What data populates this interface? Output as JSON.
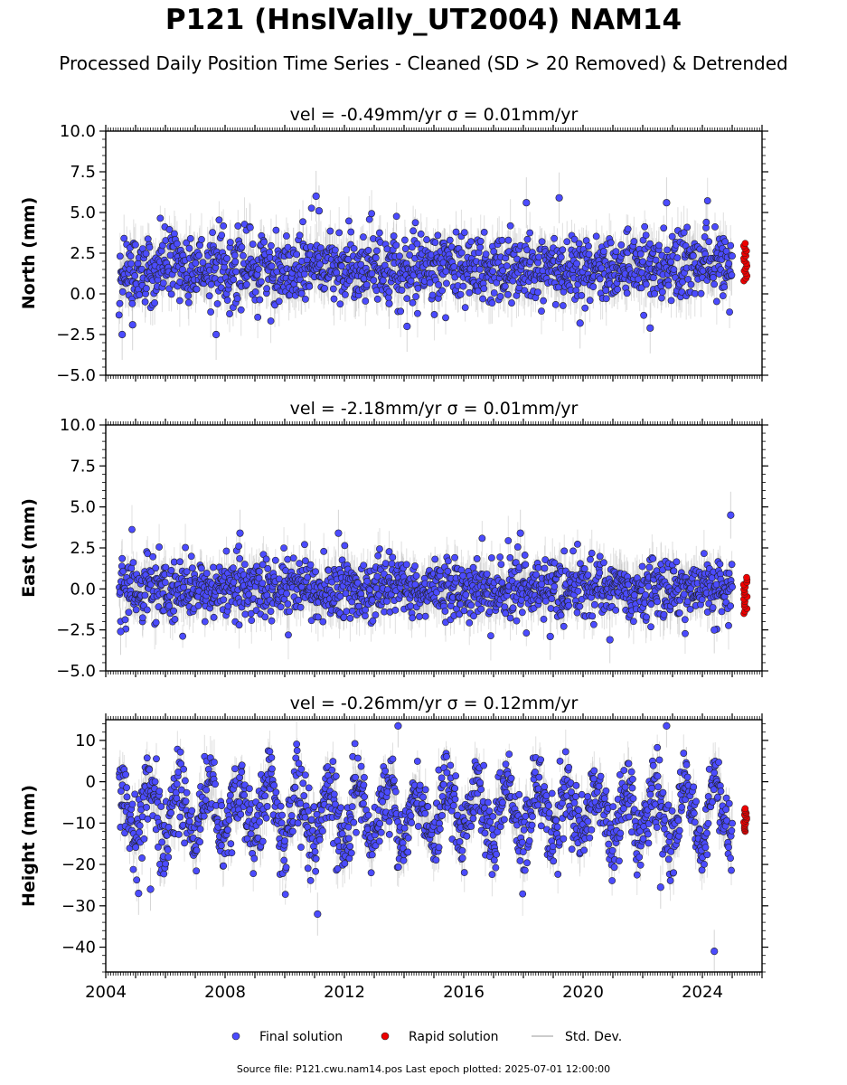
{
  "figure": {
    "title": "P121 (HnslVally_UT2004) NAM14",
    "subtitle": "Processed Daily Position Time Series - Cleaned (SD > 20 Removed) & Detrended",
    "footer": "Source file: P121.cwu.nam14.pos  Last epoch plotted: 2025-07-01 12:00:00"
  },
  "chart_data": {
    "type": "scatter",
    "xlabel": "",
    "xlim": [
      2004.0,
      2026.0
    ],
    "x_ticks": [
      2004,
      2008,
      2012,
      2016,
      2020,
      2024
    ],
    "x_tick_labels": [
      "2004",
      "2008",
      "2012",
      "2016",
      "2020",
      "2024"
    ],
    "data_span": {
      "final_start": 2004.45,
      "final_end": 2025.0,
      "rapid_start": 2025.38,
      "rapid_end": 2025.5
    },
    "legend": {
      "placement": "bottom-center",
      "entries": [
        {
          "label": "Final solution",
          "marker": "circle",
          "color": "#4b4bff"
        },
        {
          "label": "Rapid solution",
          "marker": "circle",
          "color": "#ee0000"
        },
        {
          "label": "Std. Dev.",
          "marker": "line",
          "color": "#cccccc"
        }
      ]
    },
    "colors": {
      "final": "#4b4bff",
      "rapid": "#ee0000",
      "stddev": "#bbbbbb",
      "edge": "#222222"
    },
    "panels": [
      {
        "component": "north",
        "subtitle": "vel = -0.49mm/yr   σ = 0.01mm/yr",
        "ylabel": "North (mm)",
        "ylim": [
          -5.0,
          10.0
        ],
        "y_ticks": [
          -5.0,
          -2.5,
          0.0,
          2.5,
          5.0,
          7.5,
          10.0
        ],
        "y_tick_labels": [
          "−5.0",
          "−2.5",
          "0.0",
          "2.5",
          "5.0",
          "7.5",
          "10.0"
        ],
        "final_mean": 1.6,
        "final_sd": 1.05,
        "sigma_bar": 1.2,
        "rapid_range": [
          0.8,
          3.1
        ],
        "outliers": [
          [
            2004.55,
            -2.5
          ],
          [
            2004.9,
            -1.9
          ],
          [
            2007.7,
            -2.5
          ],
          [
            2011.05,
            6.0
          ],
          [
            2011.15,
            5.1
          ],
          [
            2013.5,
            -0.6
          ],
          [
            2014.1,
            -2.0
          ],
          [
            2018.1,
            5.6
          ],
          [
            2019.2,
            5.9
          ],
          [
            2022.8,
            5.6
          ],
          [
            2022.25,
            -2.1
          ],
          [
            2019.9,
            -1.8
          ]
        ]
      },
      {
        "component": "east",
        "subtitle": "vel = -2.18mm/yr   σ = 0.01mm/yr",
        "ylabel": "East (mm)",
        "ylim": [
          -5.0,
          10.0
        ],
        "y_ticks": [
          -5.0,
          -2.5,
          0.0,
          2.5,
          5.0,
          7.5,
          10.0
        ],
        "y_tick_labels": [
          "−5.0",
          "−2.5",
          "0.0",
          "2.5",
          "5.0",
          "7.5",
          "10.0"
        ],
        "final_mean": 0.0,
        "final_sd": 0.95,
        "sigma_bar": 1.1,
        "rapid_range": [
          -1.5,
          0.7
        ],
        "outliers": [
          [
            2004.5,
            -2.6
          ],
          [
            2008.5,
            3.4
          ],
          [
            2011.8,
            3.4
          ],
          [
            2017.9,
            3.4
          ],
          [
            2020.9,
            -3.1
          ],
          [
            2024.95,
            4.5
          ],
          [
            2024.4,
            -2.5
          ],
          [
            2018.9,
            -2.9
          ]
        ]
      },
      {
        "component": "height",
        "subtitle": "vel = -0.26mm/yr   σ = 0.12mm/yr",
        "ylabel": "Height (mm)",
        "ylim": [
          -46.0,
          15.0
        ],
        "y_ticks": [
          -40,
          -30,
          -20,
          -10,
          0,
          10
        ],
        "y_tick_labels": [
          "−40",
          "−30",
          "−20",
          "−10",
          "0",
          "10"
        ],
        "final_mean": -7.5,
        "final_sd": 4.5,
        "seasonal_amp": 6.5,
        "sigma_bar": 4.0,
        "rapid_range": [
          -12.0,
          -6.5
        ],
        "outliers": [
          [
            2011.1,
            -32.0
          ],
          [
            2024.4,
            -41.0
          ],
          [
            2005.1,
            -27.0
          ],
          [
            2005.5,
            -26.0
          ],
          [
            2022.6,
            -25.5
          ],
          [
            2013.8,
            13.5
          ],
          [
            2022.8,
            13.5
          ]
        ]
      }
    ]
  }
}
